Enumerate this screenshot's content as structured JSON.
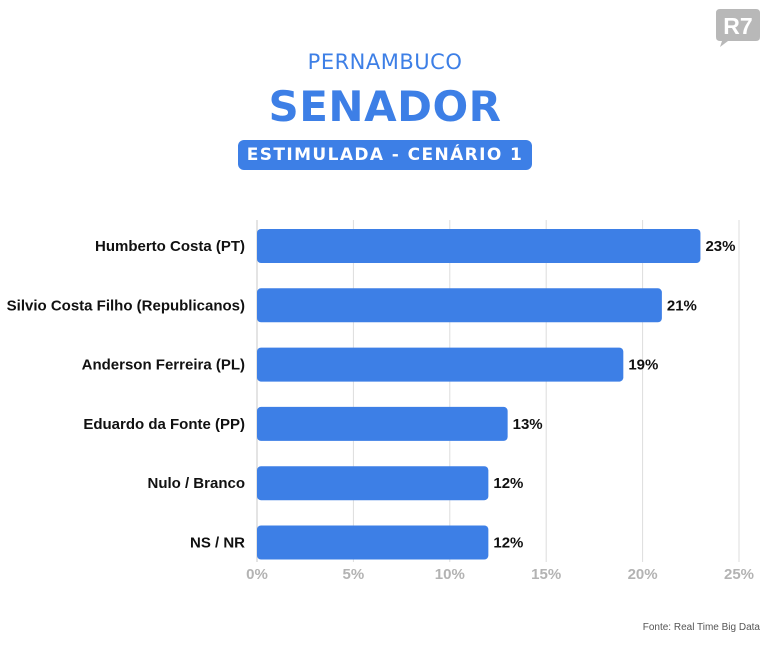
{
  "brand": {
    "logo_text": "R7",
    "color": "#b8b8b8"
  },
  "header": {
    "state": "PERNAMBUCO",
    "office": "SENADOR",
    "scenario": "ESTIMULADA - CENÁRIO 1"
  },
  "colors": {
    "accent": "#3d7fe6",
    "bar": "#3d7fe6",
    "grid": "#dddddd",
    "tick": "#b3b3b3"
  },
  "chart_data": {
    "type": "bar",
    "orientation": "horizontal",
    "categories": [
      "Humberto Costa (PT)",
      "Silvio Costa Filho (Republicanos)",
      "Anderson Ferreira (PL)",
      "Eduardo da Fonte (PP)",
      "Nulo / Branco",
      "NS / NR"
    ],
    "values": [
      23,
      21,
      19,
      13,
      12,
      12
    ],
    "value_labels": [
      "23%",
      "21%",
      "19%",
      "13%",
      "12%",
      "12%"
    ],
    "xlim": [
      0,
      25
    ],
    "xticks": [
      0,
      5,
      10,
      15,
      20,
      25
    ],
    "xtick_labels": [
      "0%",
      "5%",
      "10%",
      "15%",
      "20%",
      "25%"
    ],
    "grid": "vertical",
    "title": "",
    "xlabel": "",
    "ylabel": ""
  },
  "source": "Fonte: Real Time Big Data"
}
